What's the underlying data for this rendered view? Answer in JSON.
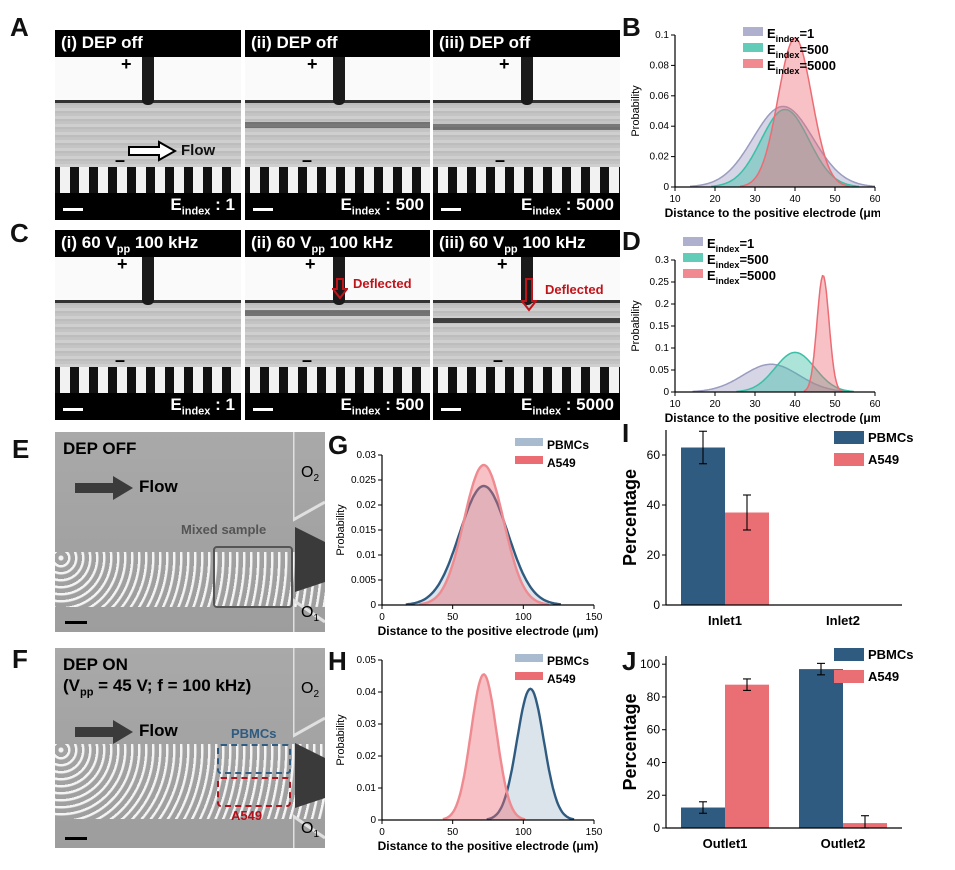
{
  "panel_labels": {
    "A": "A",
    "B": "B",
    "C": "C",
    "D": "D",
    "E": "E",
    "F": "F",
    "G": "G",
    "H": "H",
    "I": "I",
    "J": "J"
  },
  "micrographs": {
    "row_a": [
      {
        "title": "(i) DEP off",
        "e_prefix": "E",
        "e_sub": "index",
        "e_val": ": 1",
        "plus": "+",
        "minus": "–",
        "flow": "Flow"
      },
      {
        "title": "(ii) DEP off",
        "e_prefix": "E",
        "e_sub": "index",
        "e_val": ": 500",
        "plus": "+",
        "minus": "–"
      },
      {
        "title": "(iii) DEP off",
        "e_prefix": "E",
        "e_sub": "index",
        "e_val": ": 5000",
        "plus": "+",
        "minus": "–"
      }
    ],
    "row_c": [
      {
        "title_pre": "(i) 60 V",
        "title_sub": "pp",
        "title_post": " 100 kHz",
        "e_prefix": "E",
        "e_sub": "index",
        "e_val": ": 1",
        "plus": "+",
        "minus": "–"
      },
      {
        "title_pre": "(ii) 60 V",
        "title_sub": "pp",
        "title_post": " 100 kHz",
        "e_prefix": "E",
        "e_sub": "index",
        "e_val": ": 500",
        "plus": "+",
        "minus": "–",
        "deflected": "Deflected"
      },
      {
        "title_pre": "(iii) 60 V",
        "title_sub": "pp",
        "title_post": " 100 kHz",
        "e_prefix": "E",
        "e_sub": "index",
        "e_val": ": 5000",
        "plus": "+",
        "minus": "–",
        "deflected": "Deflected"
      }
    ]
  },
  "photos": {
    "e": {
      "title": "DEP OFF",
      "flow": "Flow",
      "mixed": "Mixed sample",
      "o2": "O",
      "o2_sub": "2",
      "o1": "O",
      "o1_sub": "1"
    },
    "f": {
      "title1": "DEP ON",
      "title2_pre": "(V",
      "title2_sub": "pp",
      "title2_post": " = 45 V; f = 100 kHz)",
      "flow": "Flow",
      "pbmcs": "PBMCs",
      "a549": "A549",
      "o2": "O",
      "o2_sub": "2",
      "o1": "O",
      "o1_sub": "1"
    }
  },
  "colors": {
    "gray": "#9a9cc0",
    "teal": "#3bbfa6",
    "pink": "#ec6c74",
    "navy": "#2f5b80",
    "red": "#ea6f75"
  },
  "chart_data": [
    {
      "id": "B",
      "type": "area",
      "title": "",
      "xlabel": "Distance to the positive electrode (μm)",
      "ylabel": "Probability",
      "xlim": [
        10,
        60
      ],
      "ylim": [
        0,
        0.1
      ],
      "xticks": [
        10,
        20,
        30,
        40,
        50,
        60
      ],
      "yticks": [
        0,
        0.02,
        0.04,
        0.06,
        0.08,
        0.1
      ],
      "ytick_labels": [
        "0",
        "0.02",
        "0.04",
        "0.06",
        "0.08",
        "0.1"
      ],
      "series": [
        {
          "name": "Eindex=1",
          "name_main": "E",
          "name_sub": "index",
          "name_val": "=1",
          "mean": 37,
          "sd": 7.5,
          "peak": 0.053
        },
        {
          "name": "Eindex=500",
          "name_main": "E",
          "name_sub": "index",
          "name_val": "=500",
          "mean": 37.5,
          "sd": 6,
          "peak": 0.051
        },
        {
          "name": "Eindex=5000",
          "name_main": "E",
          "name_sub": "index",
          "name_val": "=5000",
          "mean": 40,
          "sd": 4.2,
          "peak": 0.098
        }
      ]
    },
    {
      "id": "D",
      "type": "area",
      "title": "",
      "xlabel": "Distance to the positive electrode (μm)",
      "ylabel": "Probability",
      "xlim": [
        10,
        60
      ],
      "ylim": [
        0,
        0.3
      ],
      "xticks": [
        10,
        20,
        30,
        40,
        50,
        60
      ],
      "yticks": [
        0,
        0.05,
        0.1,
        0.15,
        0.2,
        0.25,
        0.3
      ],
      "ytick_labels": [
        "0",
        "0.05",
        "0.1",
        "0.15",
        "0.2",
        "0.25",
        "0.3"
      ],
      "series": [
        {
          "name": "Eindex=1",
          "name_main": "E",
          "name_sub": "index",
          "name_val": "=1",
          "mean": 34,
          "sd": 7,
          "peak": 0.063
        },
        {
          "name": "Eindex=500",
          "name_main": "E",
          "name_sub": "index",
          "name_val": "=500",
          "mean": 40,
          "sd": 5,
          "peak": 0.09
        },
        {
          "name": "Eindex=5000",
          "name_main": "E",
          "name_sub": "index",
          "name_val": "=5000",
          "mean": 47,
          "sd": 1.5,
          "peak": 0.265
        }
      ]
    },
    {
      "id": "G",
      "type": "area",
      "title": "",
      "xlabel": "Distance to the positive electrode (μm)",
      "ylabel": "Probability",
      "xlim": [
        0,
        150
      ],
      "ylim": [
        0,
        0.03
      ],
      "xticks": [
        0,
        50,
        100,
        150
      ],
      "yticks": [
        0,
        0.005,
        0.01,
        0.015,
        0.02,
        0.025,
        0.03
      ],
      "ytick_labels": [
        "0",
        "0.005",
        "0.01",
        "0.015",
        "0.02",
        "0.025",
        "0.03"
      ],
      "series": [
        {
          "name": "PBMCs",
          "mean": 72,
          "sd": 17,
          "peak": 0.0238
        },
        {
          "name": "A549",
          "mean": 72,
          "sd": 14,
          "peak": 0.028
        }
      ]
    },
    {
      "id": "H",
      "type": "area",
      "title": "",
      "xlabel": "Distance to the positive electrode (μm)",
      "ylabel": "Probability",
      "xlim": [
        0,
        150
      ],
      "ylim": [
        0,
        0.05
      ],
      "xticks": [
        0,
        50,
        100,
        150
      ],
      "yticks": [
        0,
        0.01,
        0.02,
        0.03,
        0.04,
        0.05
      ],
      "ytick_labels": [
        "0",
        "0.01",
        "0.02",
        "0.03",
        "0.04",
        "0.05"
      ],
      "series": [
        {
          "name": "PBMCs",
          "mean": 105,
          "sd": 9.5,
          "peak": 0.041
        },
        {
          "name": "A549",
          "mean": 72,
          "sd": 9,
          "peak": 0.0455
        }
      ]
    },
    {
      "id": "I",
      "type": "bar",
      "title": "",
      "xlabel": "",
      "ylabel": "Percentage",
      "ylim": [
        0,
        70
      ],
      "yticks": [
        0,
        20,
        40,
        60
      ],
      "categories": [
        "Inlet1",
        "Inlet2"
      ],
      "series": [
        {
          "name": "PBMCs",
          "values": [
            63,
            null
          ],
          "errors": [
            6.5,
            null
          ]
        },
        {
          "name": "A549",
          "values": [
            37,
            null
          ],
          "errors": [
            7,
            null
          ]
        }
      ]
    },
    {
      "id": "J",
      "type": "bar",
      "title": "",
      "xlabel": "",
      "ylabel": "Percentage",
      "ylim": [
        0,
        105
      ],
      "yticks": [
        0,
        20,
        40,
        60,
        80,
        100
      ],
      "categories": [
        "Outlet1",
        "Outlet2"
      ],
      "series": [
        {
          "name": "PBMCs",
          "values": [
            12.5,
            97
          ],
          "errors": [
            3.5,
            3.5
          ]
        },
        {
          "name": "A549",
          "values": [
            87.5,
            3
          ],
          "errors": [
            3.5,
            4.5
          ]
        }
      ]
    }
  ]
}
